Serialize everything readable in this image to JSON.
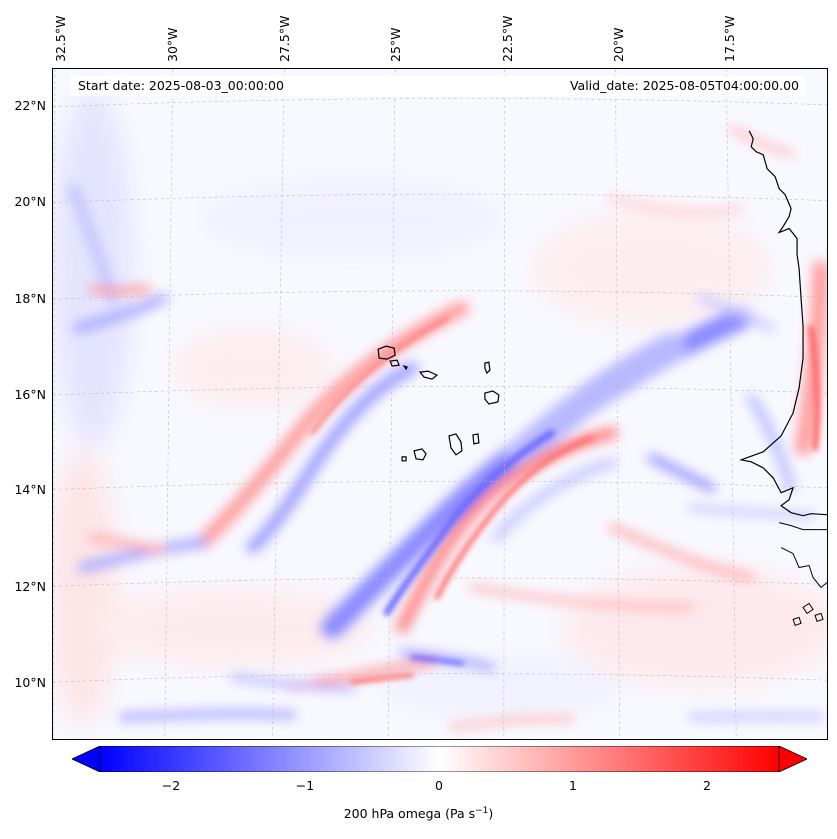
{
  "map": {
    "start_date": "Start date: 2025-08-03_00:00:00",
    "valid_date": "Valid_date: 2025-08-05T04:00:00.00",
    "lon_labels": [
      "32.5°W",
      "30°W",
      "27.5°W",
      "25°W",
      "22.5°W",
      "20°W",
      "17.5°W"
    ],
    "lat_labels": [
      "22°N",
      "20°N",
      "18°N",
      "16°N",
      "14°N",
      "12°N",
      "10°N"
    ],
    "colormap": "bwr",
    "colors": {
      "negative": "#0000ff",
      "neutral": "#ffffff",
      "positive": "#ff0000",
      "coast": "#000000",
      "grid": "#bbbbbb"
    },
    "extent": {
      "lon_min": -32.7,
      "lon_max": -15.6,
      "lat_min": 8.9,
      "lat_max": 22.8
    }
  },
  "colorbar": {
    "label": "200 hPa omega (Pa s",
    "label_exponent": "−1",
    "label_close": ")",
    "ticks": [
      "−2",
      "−1",
      "0",
      "1",
      "2"
    ],
    "range": [
      -2.75,
      2.75
    ],
    "extend": "both"
  }
}
